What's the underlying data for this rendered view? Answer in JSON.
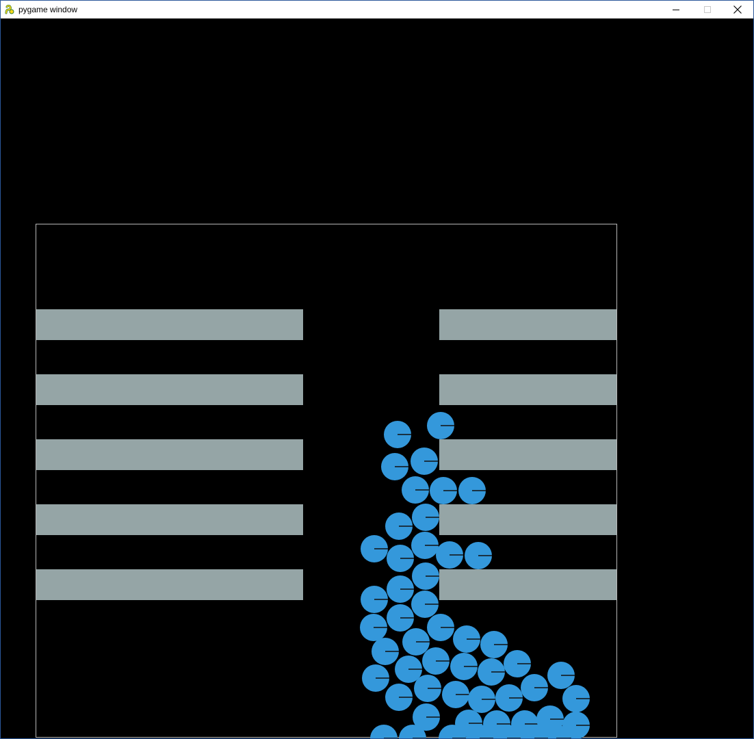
{
  "window": {
    "title": "pygame window",
    "icon": "pygame-snake-icon",
    "controls": {
      "minimize": "minimize-icon",
      "maximize": "maximize-icon",
      "close": "close-icon"
    }
  },
  "colors": {
    "background": "#000000",
    "container_border": "#b8b8b8",
    "shelf": "#95a5a6",
    "ball": "#3498db",
    "ball_marker": "#111111"
  },
  "scene": {
    "shelf_rows": 5,
    "ball_count": 52
  }
}
